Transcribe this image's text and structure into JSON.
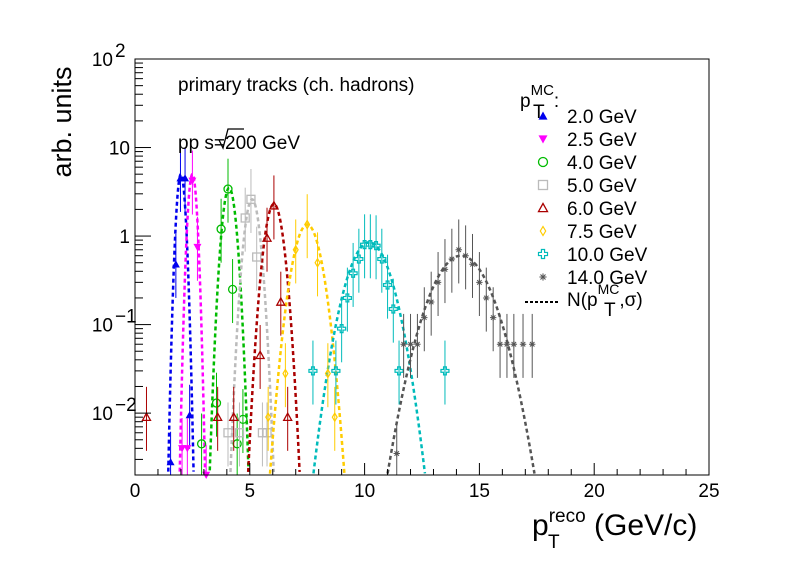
{
  "chart_data": {
    "type": "scatter",
    "xlabel": "p",
    "xlabel_sup": "reco",
    "xlabel_sub": "T",
    "xlabel_unit": " (GeV/c)",
    "ylabel": "arb. units",
    "xlim": [
      0,
      25
    ],
    "ylim": [
      0.002,
      100
    ],
    "yscale": "log",
    "xticks": [
      "0",
      "5",
      "10",
      "15",
      "20",
      "25"
    ],
    "yticks": [
      "10",
      "10",
      "1",
      "10",
      "10"
    ],
    "ytick_exp": [
      "2",
      "",
      "",
      "−1",
      "−2"
    ],
    "annotations": {
      "line1": "primary tracks (ch. hadrons)",
      "line2_pre": "pp ",
      "line2_root": "s",
      "line2_post": "=200 GeV"
    },
    "legend": {
      "header": "p",
      "header_sub": "T",
      "header_sup": "MC",
      "header_tail": ":",
      "fit_label_pre": "N(p",
      "fit_label_sub": "T",
      "fit_label_sup": "MC",
      "fit_label_post": ",σ)",
      "placement": "top-right"
    },
    "series": [
      {
        "name": "2.0 GeV",
        "color": "#0000ee",
        "marker": "triangle-up",
        "mean": 2.0,
        "sigma": 0.14,
        "amp": 5.0,
        "x": [
          1.55,
          1.78,
          1.98,
          2.18,
          2.38
        ],
        "y": [
          0.0028,
          0.48,
          4.5,
          4.5,
          0.0095
        ]
      },
      {
        "name": "2.5 GeV",
        "color": "#ff00ff",
        "marker": "triangle-down",
        "mean": 2.5,
        "sigma": 0.14,
        "amp": 5.0,
        "x": [
          2.05,
          2.28,
          2.5,
          2.72,
          3.1
        ],
        "y": [
          0.004,
          0.004,
          4.2,
          0.75,
          0.002
        ]
      },
      {
        "name": "4.0 GeV",
        "color": "#00bb00",
        "marker": "circle",
        "mean": 4.1,
        "sigma": 0.22,
        "amp": 3.5,
        "x": [
          2.9,
          3.55,
          3.75,
          4.05,
          4.25,
          4.45,
          4.7
        ],
        "y": [
          0.0045,
          0.013,
          1.2,
          3.4,
          0.25,
          0.0045,
          0.0085
        ]
      },
      {
        "name": "5.0 GeV",
        "color": "#bbbbbb",
        "marker": "square",
        "mean": 5.1,
        "sigma": 0.25,
        "amp": 2.6,
        "x": [
          4.05,
          4.55,
          4.8,
          5.05,
          5.3,
          5.55,
          5.75
        ],
        "y": [
          0.006,
          0.006,
          1.6,
          2.6,
          0.58,
          0.006,
          0.006
        ]
      },
      {
        "name": "6.0 GeV",
        "color": "#aa0000",
        "marker": "triangle-up-open",
        "mean": 6.05,
        "sigma": 0.3,
        "amp": 2.3,
        "x": [
          0.5,
          3.6,
          4.3,
          5.45,
          5.75,
          6.05,
          6.35,
          6.65
        ],
        "y": [
          0.009,
          0.009,
          0.009,
          0.045,
          0.95,
          2.2,
          0.18,
          0.009
        ]
      },
      {
        "name": "7.5 GeV",
        "color": "#ffcc00",
        "marker": "diamond",
        "mean": 7.5,
        "sigma": 0.45,
        "amp": 1.35,
        "x": [
          5.8,
          6.55,
          7.0,
          7.5,
          7.95,
          8.4,
          8.7
        ],
        "y": [
          0.009,
          0.028,
          0.7,
          1.35,
          0.5,
          0.028,
          0.009
        ]
      },
      {
        "name": "10.0 GeV",
        "color": "#00bbbb",
        "marker": "cross",
        "mean": 10.2,
        "sigma": 0.7,
        "amp": 0.85,
        "x": [
          7.75,
          8.75,
          9.0,
          9.25,
          9.5,
          9.75,
          10.0,
          10.25,
          10.5,
          10.75,
          11.0,
          11.25,
          11.5,
          13.5
        ],
        "y": [
          0.03,
          0.03,
          0.09,
          0.2,
          0.38,
          0.55,
          0.8,
          0.8,
          0.78,
          0.55,
          0.28,
          0.15,
          0.03,
          0.03
        ]
      },
      {
        "name": "14.0 GeV",
        "color": "#555555",
        "marker": "star",
        "mean": 14.2,
        "sigma": 0.95,
        "amp": 0.6,
        "x": [
          11.4,
          11.7,
          12.0,
          12.3,
          12.6,
          12.9,
          13.2,
          13.5,
          13.8,
          14.1,
          14.4,
          14.7,
          15.0,
          15.3,
          15.6,
          15.9,
          16.2,
          16.5,
          16.9,
          17.3
        ],
        "y": [
          0.0035,
          0.06,
          0.06,
          0.06,
          0.12,
          0.18,
          0.3,
          0.42,
          0.55,
          0.7,
          0.6,
          0.48,
          0.3,
          0.2,
          0.12,
          0.06,
          0.06,
          0.06,
          0.06,
          0.06
        ]
      }
    ]
  }
}
